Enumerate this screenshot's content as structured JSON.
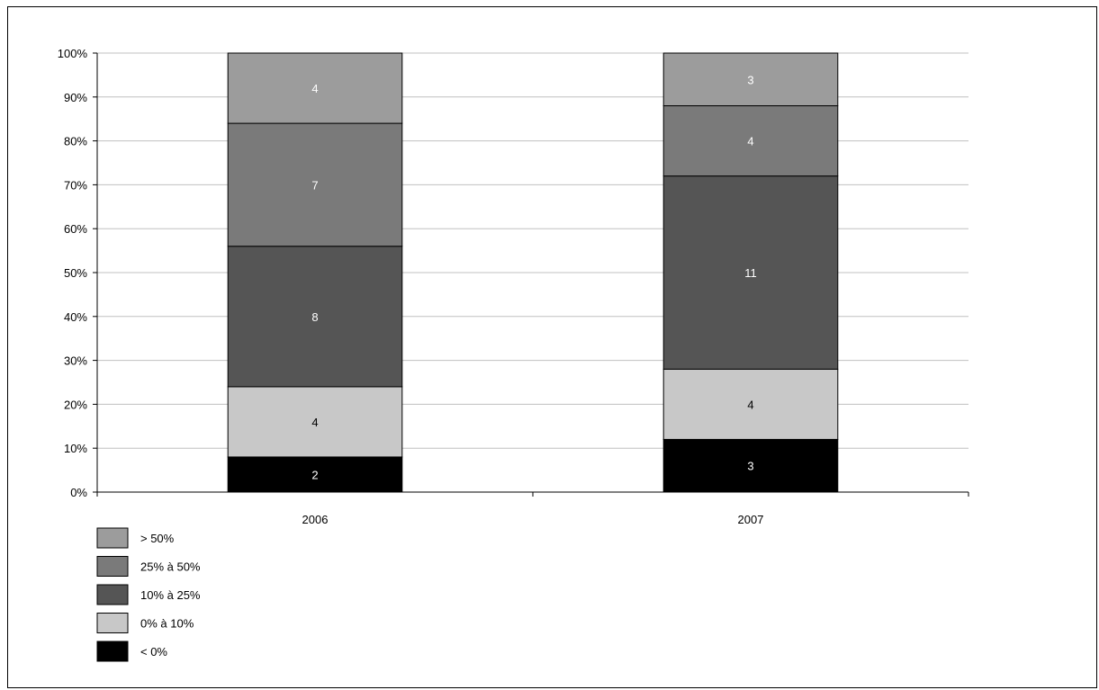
{
  "chart_data": {
    "type": "bar",
    "stacked": "percent",
    "categories": [
      "2006",
      "2007"
    ],
    "series": [
      {
        "name": "< 0%",
        "values": [
          2,
          3
        ],
        "color": "#000000",
        "label_color": "#ffffff"
      },
      {
        "name": "0% à 10%",
        "values": [
          4,
          4
        ],
        "color": "#c8c8c8",
        "label_color": "#000000"
      },
      {
        "name": "10% à 25%",
        "values": [
          8,
          11
        ],
        "color": "#555555",
        "label_color": "#ffffff"
      },
      {
        "name": "25% à 50%",
        "values": [
          7,
          4
        ],
        "color": "#7a7a7a",
        "label_color": "#ffffff"
      },
      {
        "name": "> 50%",
        "values": [
          4,
          3
        ],
        "color": "#9c9c9c",
        "label_color": "#ffffff"
      }
    ],
    "yticks": [
      "0%",
      "10%",
      "20%",
      "30%",
      "40%",
      "50%",
      "60%",
      "70%",
      "80%",
      "90%",
      "100%"
    ],
    "ylim": [
      0,
      100
    ],
    "grid": true,
    "legend_position": "bottom-left",
    "legend_order": [
      "> 50%",
      "25% à 50%",
      "10% à 25%",
      "0% à 10%",
      "< 0%"
    ],
    "title": "",
    "xlabel": "",
    "ylabel": ""
  }
}
